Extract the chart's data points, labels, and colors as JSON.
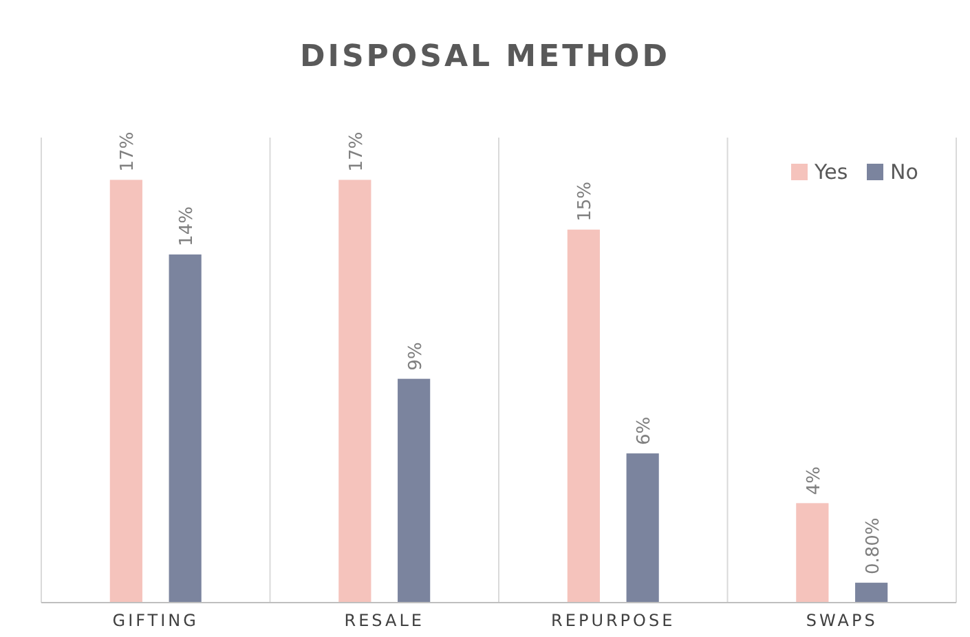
{
  "chart_data": {
    "type": "bar",
    "title": "DISPOSAL METHOD",
    "categories": [
      "GIFTING",
      "RESALE",
      "REPURPOSE",
      "SWAPS"
    ],
    "series": [
      {
        "name": "Yes",
        "color": "#f5c3bc",
        "values": [
          17,
          17,
          15,
          4
        ],
        "value_labels": [
          "17%",
          "17%",
          "15%",
          "4%"
        ]
      },
      {
        "name": "No",
        "color": "#7b849e",
        "values": [
          14,
          9,
          6,
          0.8
        ],
        "value_labels": [
          "14%",
          "9%",
          "6%",
          "0.80%"
        ]
      }
    ],
    "grid": "x",
    "legend": "top right"
  }
}
